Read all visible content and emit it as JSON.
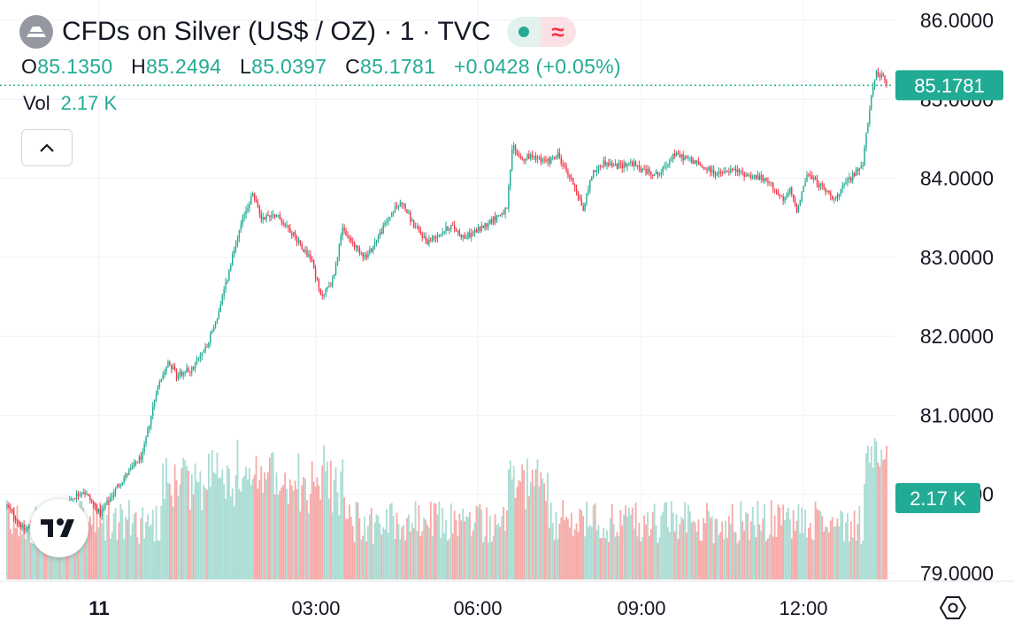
{
  "header": {
    "title": "CFDs on Silver (US$ / OZ) · 1 · TVC",
    "status_dot_color": "#22ab94",
    "wave_symbol": "≈",
    "logo_icon": "silver-logo-icon"
  },
  "ohlc": {
    "o_label": "O",
    "o_value": "85.1350",
    "h_label": "H",
    "h_value": "85.2494",
    "l_label": "L",
    "l_value": "85.0397",
    "c_label": "C",
    "c_value": "85.1781",
    "change": "+0.0428 (+0.05%)"
  },
  "volume": {
    "label": "Vol",
    "value": "2.17 K"
  },
  "price_badge": "85.1781",
  "volume_badge": "2.17 K",
  "colors": {
    "up": "#22ab94",
    "down": "#f23645",
    "up_vol": "#a9dcd3",
    "down_vol": "#f7a9a7",
    "grid": "#f0f3fa",
    "badge": "#22ab94"
  },
  "chart_data": {
    "type": "candlestick",
    "symbol": "CFDs on Silver (US$ / OZ)",
    "interval": "1",
    "y_ticks": [
      "86.0000",
      "85.0000",
      "84.0000",
      "83.0000",
      "82.0000",
      "81.0000",
      "80.0000",
      "79.0000"
    ],
    "x_ticks": [
      "11",
      "03:00",
      "06:00",
      "09:00",
      "12:00"
    ],
    "ylim": [
      78.95,
      86.15
    ],
    "last_price": 85.1781,
    "price_path": [
      [
        0,
        79.85
      ],
      [
        10,
        79.55
      ],
      [
        20,
        79.7
      ],
      [
        35,
        79.9
      ],
      [
        45,
        80.05
      ],
      [
        55,
        79.75
      ],
      [
        65,
        80.1
      ],
      [
        80,
        80.5
      ],
      [
        88,
        81.3
      ],
      [
        95,
        81.7
      ],
      [
        100,
        81.5
      ],
      [
        110,
        81.6
      ],
      [
        118,
        81.9
      ],
      [
        125,
        82.3
      ],
      [
        133,
        83.0
      ],
      [
        140,
        83.55
      ],
      [
        145,
        83.8
      ],
      [
        150,
        83.5
      ],
      [
        158,
        83.55
      ],
      [
        165,
        83.4
      ],
      [
        172,
        83.2
      ],
      [
        180,
        82.95
      ],
      [
        185,
        82.5
      ],
      [
        192,
        82.7
      ],
      [
        198,
        83.35
      ],
      [
        205,
        83.15
      ],
      [
        212,
        83.0
      ],
      [
        220,
        83.3
      ],
      [
        228,
        83.6
      ],
      [
        233,
        83.7
      ],
      [
        240,
        83.4
      ],
      [
        248,
        83.2
      ],
      [
        255,
        83.3
      ],
      [
        262,
        83.4
      ],
      [
        270,
        83.25
      ],
      [
        278,
        83.35
      ],
      [
        288,
        83.5
      ],
      [
        295,
        83.6
      ],
      [
        298,
        84.4
      ],
      [
        305,
        84.25
      ],
      [
        310,
        84.3
      ],
      [
        318,
        84.2
      ],
      [
        325,
        84.3
      ],
      [
        330,
        84.1
      ],
      [
        336,
        83.85
      ],
      [
        340,
        83.6
      ],
      [
        345,
        84.05
      ],
      [
        352,
        84.2
      ],
      [
        360,
        84.15
      ],
      [
        368,
        84.2
      ],
      [
        375,
        84.1
      ],
      [
        385,
        84.05
      ],
      [
        393,
        84.3
      ],
      [
        402,
        84.25
      ],
      [
        410,
        84.15
      ],
      [
        420,
        84.05
      ],
      [
        428,
        84.1
      ],
      [
        436,
        84.05
      ],
      [
        445,
        84.0
      ],
      [
        452,
        83.9
      ],
      [
        458,
        83.7
      ],
      [
        462,
        83.85
      ],
      [
        466,
        83.6
      ],
      [
        472,
        84.05
      ],
      [
        478,
        83.95
      ],
      [
        485,
        83.8
      ],
      [
        490,
        83.75
      ],
      [
        495,
        83.95
      ],
      [
        500,
        84.05
      ],
      [
        505,
        84.2
      ],
      [
        509,
        84.9
      ],
      [
        513,
        85.35
      ],
      [
        516,
        85.3
      ],
      [
        519,
        85.18
      ]
    ],
    "volume_note": "volume histogram in bottom pane, latest volume 2.17 K"
  }
}
